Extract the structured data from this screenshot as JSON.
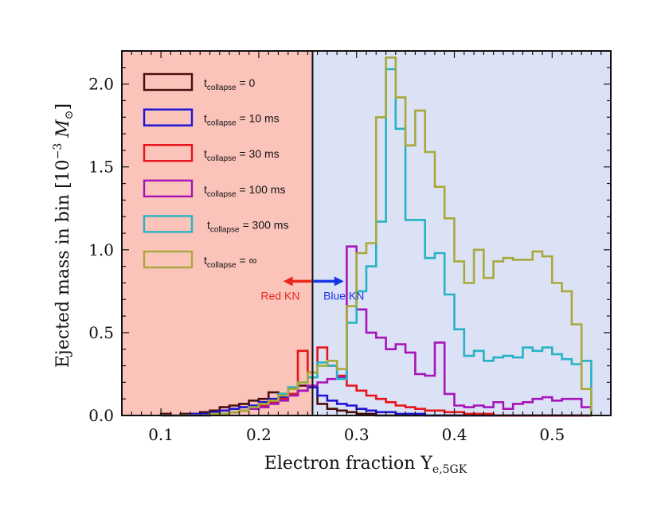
{
  "chart_data": {
    "type": "histogram",
    "xlabel": "Electron fraction Y",
    "xlabel_subscript": "e,5GK",
    "ylabel": "Ejected mass in bin [10",
    "ylabel_exponent": "−3",
    "ylabel_unit": " M",
    "ylabel_unit_symbol": "⊙",
    "ylabel_close": "]",
    "xlim": [
      0.06,
      0.56
    ],
    "ylim": [
      0,
      2.2
    ],
    "xticks": [
      0.1,
      0.2,
      0.3,
      0.4,
      0.5
    ],
    "xtick_labels": [
      "0.1",
      "0.2",
      "0.3",
      "0.4",
      "0.5"
    ],
    "yticks": [
      0.0,
      0.5,
      1.0,
      1.5,
      2.0
    ],
    "ytick_labels": [
      "0.0",
      "0.5",
      "1.0",
      "1.5",
      "2.0"
    ],
    "bin_edges": [
      0.1,
      0.11,
      0.12,
      0.13,
      0.14,
      0.15,
      0.16,
      0.17,
      0.18,
      0.19,
      0.2,
      0.21,
      0.22,
      0.23,
      0.24,
      0.25,
      0.26,
      0.27,
      0.28,
      0.29,
      0.3,
      0.31,
      0.32,
      0.33,
      0.34,
      0.35,
      0.36,
      0.37,
      0.38,
      0.39,
      0.4,
      0.41,
      0.42,
      0.43,
      0.44,
      0.45,
      0.46,
      0.47,
      0.48,
      0.49,
      0.5,
      0.51,
      0.52,
      0.53,
      0.54
    ],
    "regions": [
      {
        "name": "red",
        "x_from": 0.06,
        "x_to": 0.255,
        "color": "#fbc4bb"
      },
      {
        "name": "blue",
        "x_from": 0.255,
        "x_to": 0.56,
        "color": "#dce2f6"
      }
    ],
    "divider_x": 0.255,
    "annotations": [
      {
        "name": "red-kn",
        "text": "Red KN",
        "color": "#e8261a",
        "arrow_from": 0.254,
        "arrow_to": 0.225,
        "arrow_y": 0.81,
        "label_x": 0.222,
        "label_y": 0.7
      },
      {
        "name": "blue-kn",
        "text": "Blue KN",
        "color": "#1734e6",
        "arrow_from": 0.256,
        "arrow_to": 0.287,
        "arrow_y": 0.81,
        "label_x": 0.287,
        "label_y": 0.7
      }
    ],
    "series": [
      {
        "name": "t_collapse = 0",
        "legend_main": "t",
        "legend_sub": "collapse",
        "legend_rest": " = 0",
        "color": "#4a0d0d",
        "values": [
          0.01,
          0.0,
          0.01,
          0.01,
          0.02,
          0.03,
          0.05,
          0.06,
          0.07,
          0.09,
          0.1,
          0.14,
          0.13,
          0.16,
          0.18,
          0.17,
          0.07,
          0.04,
          0.03,
          0.02,
          0.01,
          0.01,
          0.0,
          0.0,
          0.0,
          0.0,
          0.0,
          0.0,
          0.0,
          0.0,
          0.0,
          0.0,
          0.0,
          0.0,
          0.0,
          0.0,
          0.0,
          0.0,
          0.0,
          0.0,
          0.0,
          0.0,
          0.0,
          0.0
        ]
      },
      {
        "name": "t_collapse = 10 ms",
        "legend_main": "t",
        "legend_sub": "collapse",
        "legend_rest": " = 10 ms",
        "color": "#1f14d6",
        "values": [
          0.0,
          0.0,
          0.0,
          0.01,
          0.01,
          0.02,
          0.03,
          0.04,
          0.05,
          0.06,
          0.08,
          0.1,
          0.11,
          0.13,
          0.15,
          0.17,
          0.12,
          0.09,
          0.07,
          0.06,
          0.04,
          0.03,
          0.02,
          0.02,
          0.01,
          0.01,
          0.01,
          0.0,
          0.0,
          0.0,
          0.0,
          0.0,
          0.0,
          0.0,
          0.0,
          0.0,
          0.0,
          0.0,
          0.0,
          0.0,
          0.0,
          0.0,
          0.0,
          0.0
        ]
      },
      {
        "name": "t_collapse = 30 ms",
        "legend_main": "t",
        "legend_sub": "collapse",
        "legend_rest": " = 30 ms",
        "color": "#e8141b",
        "values": [
          0.0,
          0.0,
          0.0,
          0.0,
          0.0,
          0.01,
          0.01,
          0.02,
          0.03,
          0.04,
          0.06,
          0.08,
          0.1,
          0.13,
          0.39,
          0.26,
          0.41,
          0.3,
          0.24,
          0.18,
          0.15,
          0.12,
          0.1,
          0.08,
          0.06,
          0.05,
          0.04,
          0.03,
          0.03,
          0.02,
          0.02,
          0.01,
          0.01,
          0.01,
          0.0,
          0.0,
          0.0,
          0.0,
          0.0,
          0.0,
          0.0,
          0.0,
          0.0,
          0.0
        ]
      },
      {
        "name": "t_collapse = 100 ms",
        "legend_main": "t",
        "legend_sub": "collapse",
        "legend_rest": " = 100 ms",
        "color": "#a614b8",
        "values": [
          0.0,
          0.0,
          0.0,
          0.0,
          0.0,
          0.01,
          0.01,
          0.02,
          0.03,
          0.04,
          0.05,
          0.07,
          0.09,
          0.12,
          0.15,
          0.18,
          0.2,
          0.22,
          0.23,
          1.02,
          0.64,
          0.5,
          0.47,
          0.4,
          0.43,
          0.38,
          0.25,
          0.24,
          0.44,
          0.13,
          0.06,
          0.05,
          0.06,
          0.05,
          0.08,
          0.04,
          0.07,
          0.08,
          0.1,
          0.11,
          0.09,
          0.1,
          0.1,
          0.05
        ]
      },
      {
        "name": "t_collapse = 300 ms",
        "legend_main": "t",
        "legend_sub": "collapse",
        "legend_rest": " = 300 ms",
        "color": "#27b2c4",
        "values": [
          0.0,
          0.0,
          0.0,
          0.0,
          0.0,
          0.01,
          0.01,
          0.02,
          0.03,
          0.05,
          0.07,
          0.09,
          0.13,
          0.17,
          0.2,
          0.23,
          0.32,
          0.3,
          0.22,
          0.56,
          0.75,
          0.9,
          1.17,
          2.09,
          1.73,
          1.18,
          1.18,
          0.95,
          0.98,
          0.73,
          0.52,
          0.36,
          0.39,
          0.33,
          0.35,
          0.36,
          0.35,
          0.41,
          0.39,
          0.41,
          0.37,
          0.34,
          0.31,
          0.33
        ]
      },
      {
        "name": "t_collapse = ∞",
        "legend_main": "t",
        "legend_sub": "collapse",
        "legend_rest": " = ∞",
        "color": "#a8a93a",
        "values": [
          0.0,
          0.0,
          0.0,
          0.0,
          0.0,
          0.01,
          0.01,
          0.02,
          0.03,
          0.05,
          0.07,
          0.09,
          0.12,
          0.16,
          0.2,
          0.26,
          0.3,
          0.33,
          0.28,
          0.66,
          0.98,
          1.04,
          1.8,
          2.16,
          1.92,
          1.63,
          1.84,
          1.59,
          1.38,
          1.19,
          0.93,
          0.8,
          1.0,
          0.83,
          0.93,
          0.95,
          0.94,
          0.94,
          0.99,
          0.96,
          0.8,
          0.75,
          0.55,
          0.16
        ]
      }
    ]
  }
}
